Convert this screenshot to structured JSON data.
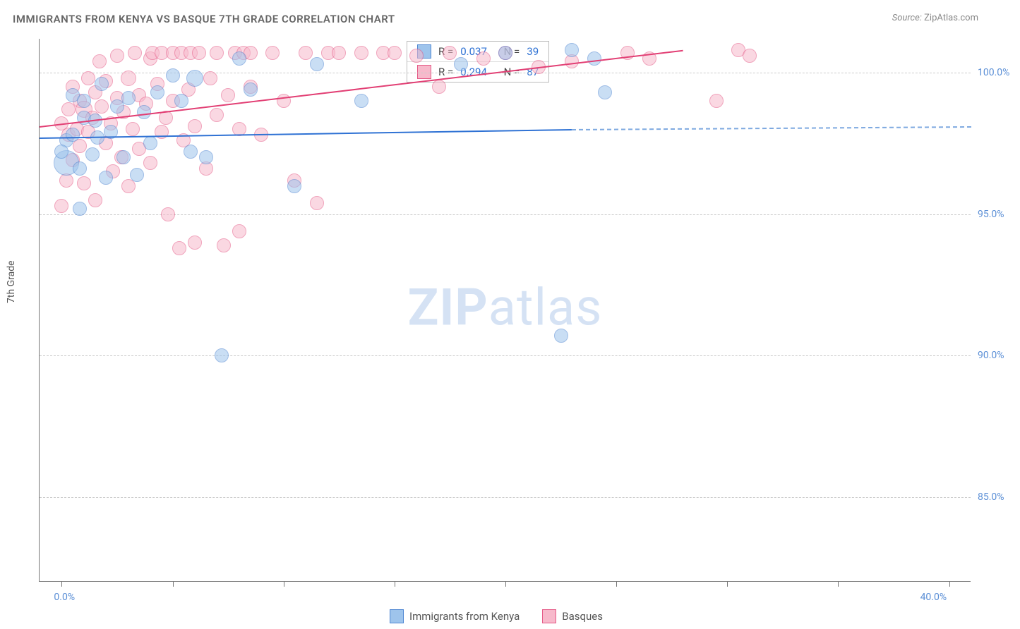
{
  "title": "IMMIGRANTS FROM KENYA VS BASQUE 7TH GRADE CORRELATION CHART",
  "source_prefix": "Source:",
  "source_name": "ZipAtlas.com",
  "watermark_bold": "ZIP",
  "watermark_rest": "atlas",
  "y_axis_label": "7th Grade",
  "chart": {
    "type": "scatter",
    "background_color": "#ffffff",
    "grid_color": "#cccccc",
    "axis_color": "#777777",
    "xlim": [
      -1,
      41
    ],
    "ylim": [
      82,
      101.2
    ],
    "x_ticks": [
      0,
      5,
      10,
      15,
      20,
      25,
      30,
      35,
      40
    ],
    "x_tick_labels": {
      "0": "0.0%",
      "40": "40.0%"
    },
    "y_ticks": [
      85,
      90,
      95,
      100
    ],
    "y_tick_labels": {
      "85": "85.0%",
      "90": "90.0%",
      "95": "95.0%",
      "100": "100.0%"
    },
    "tick_label_color": "#5b8fd6",
    "tick_label_fontsize": 14
  },
  "series": {
    "kenya": {
      "label": "Immigrants from Kenya",
      "fill_color": "#9ec4ec",
      "stroke_color": "#4f87d2",
      "fill_opacity": 0.55,
      "default_radius": 10,
      "trend": {
        "x1": -1,
        "y1": 97.7,
        "x2": 23,
        "y2": 98.0,
        "color": "#2f72d4",
        "width": 2,
        "style": "solid"
      },
      "trend_ext": {
        "x1": 23,
        "y1": 98.0,
        "x2": 41,
        "y2": 98.1,
        "color": "#7ea9e0",
        "width": 2,
        "style": "dashed"
      },
      "R": "0.037",
      "N": "39",
      "points": [
        {
          "x": 0.2,
          "y": 96.8,
          "r": 18
        },
        {
          "x": 0.2,
          "y": 97.6
        },
        {
          "x": 0.0,
          "y": 97.2
        },
        {
          "x": 0.5,
          "y": 99.2
        },
        {
          "x": 0.5,
          "y": 97.8
        },
        {
          "x": 0.8,
          "y": 96.6
        },
        {
          "x": 0.8,
          "y": 95.2
        },
        {
          "x": 1.0,
          "y": 98.4
        },
        {
          "x": 1.0,
          "y": 99.0
        },
        {
          "x": 1.4,
          "y": 97.1
        },
        {
          "x": 1.5,
          "y": 98.3
        },
        {
          "x": 1.6,
          "y": 97.7
        },
        {
          "x": 1.8,
          "y": 99.6
        },
        {
          "x": 2.0,
          "y": 96.3
        },
        {
          "x": 2.2,
          "y": 97.9
        },
        {
          "x": 2.5,
          "y": 98.8
        },
        {
          "x": 2.8,
          "y": 97.0
        },
        {
          "x": 3.0,
          "y": 99.1
        },
        {
          "x": 3.4,
          "y": 96.4
        },
        {
          "x": 3.7,
          "y": 98.6
        },
        {
          "x": 4.0,
          "y": 97.5
        },
        {
          "x": 4.3,
          "y": 99.3
        },
        {
          "x": 5.0,
          "y": 99.9
        },
        {
          "x": 5.4,
          "y": 99.0
        },
        {
          "x": 5.8,
          "y": 97.2
        },
        {
          "x": 6.0,
          "y": 99.8,
          "r": 12
        },
        {
          "x": 6.5,
          "y": 97.0
        },
        {
          "x": 7.2,
          "y": 90.0
        },
        {
          "x": 8.0,
          "y": 100.5
        },
        {
          "x": 8.5,
          "y": 99.4
        },
        {
          "x": 10.5,
          "y": 96.0
        },
        {
          "x": 11.5,
          "y": 100.3
        },
        {
          "x": 13.5,
          "y": 99.0
        },
        {
          "x": 18.0,
          "y": 100.3
        },
        {
          "x": 20.0,
          "y": 100.7
        },
        {
          "x": 22.5,
          "y": 90.7
        },
        {
          "x": 23.0,
          "y": 100.8
        },
        {
          "x": 24.0,
          "y": 100.5
        },
        {
          "x": 24.5,
          "y": 99.3
        }
      ]
    },
    "basques": {
      "label": "Basques",
      "fill_color": "#f7b9cb",
      "stroke_color": "#e55a87",
      "fill_opacity": 0.55,
      "default_radius": 10,
      "trend": {
        "x1": -1,
        "y1": 98.1,
        "x2": 28,
        "y2": 100.8,
        "color": "#e23f74",
        "width": 2,
        "style": "solid"
      },
      "R": "0.294",
      "N": "87",
      "points": [
        {
          "x": 0.0,
          "y": 98.2
        },
        {
          "x": 0.0,
          "y": 95.3
        },
        {
          "x": 0.2,
          "y": 96.2
        },
        {
          "x": 0.3,
          "y": 97.8
        },
        {
          "x": 0.3,
          "y": 98.7
        },
        {
          "x": 0.5,
          "y": 99.5
        },
        {
          "x": 0.5,
          "y": 96.9
        },
        {
          "x": 0.7,
          "y": 98.0
        },
        {
          "x": 0.8,
          "y": 99.0
        },
        {
          "x": 0.8,
          "y": 97.4
        },
        {
          "x": 1.0,
          "y": 98.7,
          "r": 12
        },
        {
          "x": 1.0,
          "y": 96.1
        },
        {
          "x": 1.2,
          "y": 99.8
        },
        {
          "x": 1.2,
          "y": 97.9
        },
        {
          "x": 1.4,
          "y": 98.4
        },
        {
          "x": 1.5,
          "y": 95.5
        },
        {
          "x": 1.5,
          "y": 99.3
        },
        {
          "x": 1.7,
          "y": 100.4
        },
        {
          "x": 1.8,
          "y": 98.8
        },
        {
          "x": 2.0,
          "y": 97.5
        },
        {
          "x": 2.0,
          "y": 99.7
        },
        {
          "x": 2.2,
          "y": 98.2
        },
        {
          "x": 2.3,
          "y": 96.5
        },
        {
          "x": 2.5,
          "y": 100.6
        },
        {
          "x": 2.5,
          "y": 99.1
        },
        {
          "x": 2.7,
          "y": 97.0
        },
        {
          "x": 2.8,
          "y": 98.6
        },
        {
          "x": 3.0,
          "y": 99.8,
          "r": 11
        },
        {
          "x": 3.0,
          "y": 96.0
        },
        {
          "x": 3.2,
          "y": 98.0
        },
        {
          "x": 3.3,
          "y": 100.7
        },
        {
          "x": 3.5,
          "y": 99.2
        },
        {
          "x": 3.5,
          "y": 97.3
        },
        {
          "x": 3.8,
          "y": 98.9
        },
        {
          "x": 4.0,
          "y": 100.5
        },
        {
          "x": 4.0,
          "y": 96.8
        },
        {
          "x": 4.1,
          "y": 100.7
        },
        {
          "x": 4.3,
          "y": 99.6
        },
        {
          "x": 4.5,
          "y": 97.9
        },
        {
          "x": 4.5,
          "y": 100.7
        },
        {
          "x": 4.7,
          "y": 98.4
        },
        {
          "x": 4.8,
          "y": 95.0
        },
        {
          "x": 5.0,
          "y": 99.0
        },
        {
          "x": 5.0,
          "y": 100.7
        },
        {
          "x": 5.3,
          "y": 93.8
        },
        {
          "x": 5.4,
          "y": 100.7
        },
        {
          "x": 5.5,
          "y": 97.6
        },
        {
          "x": 5.7,
          "y": 99.4
        },
        {
          "x": 5.8,
          "y": 100.7
        },
        {
          "x": 6.0,
          "y": 98.1
        },
        {
          "x": 6.0,
          "y": 94.0
        },
        {
          "x": 6.2,
          "y": 100.7
        },
        {
          "x": 6.5,
          "y": 96.6
        },
        {
          "x": 6.7,
          "y": 99.8
        },
        {
          "x": 7.0,
          "y": 100.7
        },
        {
          "x": 7.0,
          "y": 98.5
        },
        {
          "x": 7.3,
          "y": 93.9
        },
        {
          "x": 7.5,
          "y": 99.2
        },
        {
          "x": 7.8,
          "y": 100.7
        },
        {
          "x": 8.0,
          "y": 94.4
        },
        {
          "x": 8.0,
          "y": 98.0
        },
        {
          "x": 8.2,
          "y": 100.7
        },
        {
          "x": 8.5,
          "y": 99.5
        },
        {
          "x": 8.5,
          "y": 100.7
        },
        {
          "x": 9.0,
          "y": 97.8
        },
        {
          "x": 9.5,
          "y": 100.7
        },
        {
          "x": 10.0,
          "y": 99.0
        },
        {
          "x": 10.5,
          "y": 96.2
        },
        {
          "x": 11.0,
          "y": 100.7
        },
        {
          "x": 11.5,
          "y": 95.4
        },
        {
          "x": 12.0,
          "y": 100.7
        },
        {
          "x": 12.5,
          "y": 100.7
        },
        {
          "x": 13.5,
          "y": 100.7
        },
        {
          "x": 14.5,
          "y": 100.7
        },
        {
          "x": 15.0,
          "y": 100.7
        },
        {
          "x": 16.0,
          "y": 100.6
        },
        {
          "x": 17.0,
          "y": 99.5
        },
        {
          "x": 17.5,
          "y": 100.7
        },
        {
          "x": 19.0,
          "y": 100.5
        },
        {
          "x": 20.0,
          "y": 100.7
        },
        {
          "x": 21.5,
          "y": 100.2
        },
        {
          "x": 23.0,
          "y": 100.4
        },
        {
          "x": 25.5,
          "y": 100.7
        },
        {
          "x": 26.5,
          "y": 100.5
        },
        {
          "x": 29.5,
          "y": 99.0
        },
        {
          "x": 30.5,
          "y": 100.8
        },
        {
          "x": 31.0,
          "y": 100.6
        }
      ]
    }
  },
  "legend_box": {
    "R_label": "R =",
    "N_label": "N ="
  }
}
